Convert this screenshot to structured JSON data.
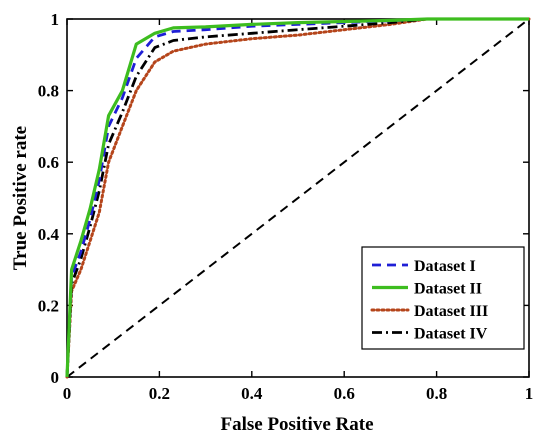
{
  "chart_data": {
    "type": "line",
    "title": "",
    "xlabel": "False Positive Rate",
    "ylabel": "True Positive rate",
    "xlim": [
      0,
      1
    ],
    "ylim": [
      0,
      1
    ],
    "xticks": [
      0,
      0.2,
      0.4,
      0.6,
      0.8,
      1
    ],
    "yticks": [
      0,
      0.2,
      0.4,
      0.6,
      0.8,
      1
    ],
    "xtick_labels": [
      "0",
      "0.2",
      "0.4",
      "0.6",
      "0.8",
      "1"
    ],
    "ytick_labels": [
      "0",
      "0.2",
      "0.4",
      "0.6",
      "0.8",
      "1"
    ],
    "grid": false,
    "legend_position": "bottom-right",
    "series": [
      {
        "name": "Dataset I",
        "color": "#1f1fd6",
        "style": "dashed",
        "x": [
          0,
          0.01,
          0.03,
          0.05,
          0.07,
          0.09,
          0.12,
          0.15,
          0.19,
          0.23,
          0.3,
          0.4,
          0.5,
          0.6,
          0.7,
          0.78,
          0.9,
          1
        ],
        "y": [
          0,
          0.28,
          0.35,
          0.44,
          0.55,
          0.7,
          0.78,
          0.89,
          0.95,
          0.965,
          0.97,
          0.98,
          0.985,
          0.99,
          0.995,
          1,
          1,
          1
        ]
      },
      {
        "name": "Dataset II",
        "color": "#3dbd1f",
        "style": "solid",
        "x": [
          0,
          0.01,
          0.03,
          0.05,
          0.07,
          0.09,
          0.12,
          0.15,
          0.19,
          0.23,
          0.3,
          0.4,
          0.5,
          0.6,
          0.7,
          0.78,
          0.9,
          1
        ],
        "y": [
          0,
          0.3,
          0.38,
          0.47,
          0.58,
          0.73,
          0.8,
          0.93,
          0.96,
          0.975,
          0.978,
          0.985,
          0.99,
          0.993,
          0.996,
          1,
          1,
          1
        ]
      },
      {
        "name": "Dataset III",
        "color": "#b5451b",
        "style": "dotted",
        "x": [
          0,
          0.01,
          0.03,
          0.05,
          0.07,
          0.09,
          0.12,
          0.15,
          0.19,
          0.23,
          0.3,
          0.4,
          0.5,
          0.6,
          0.7,
          0.78,
          0.9,
          1
        ],
        "y": [
          0,
          0.24,
          0.3,
          0.38,
          0.46,
          0.6,
          0.7,
          0.8,
          0.88,
          0.91,
          0.93,
          0.945,
          0.955,
          0.97,
          0.985,
          1,
          1,
          1
        ]
      },
      {
        "name": "Dataset IV",
        "color": "#000000",
        "style": "dashdot",
        "x": [
          0,
          0.01,
          0.03,
          0.05,
          0.07,
          0.09,
          0.12,
          0.15,
          0.19,
          0.23,
          0.3,
          0.4,
          0.5,
          0.6,
          0.7,
          0.78,
          0.9,
          1
        ],
        "y": [
          0,
          0.26,
          0.33,
          0.42,
          0.52,
          0.65,
          0.74,
          0.84,
          0.92,
          0.94,
          0.95,
          0.96,
          0.97,
          0.98,
          0.99,
          1,
          1,
          1
        ]
      },
      {
        "name": "",
        "color": "#000000",
        "style": "dashed",
        "x": [
          0,
          1
        ],
        "y": [
          0,
          1
        ]
      }
    ],
    "legend": [
      "Dataset I",
      "Dataset II",
      "Dataset III",
      "Dataset IV"
    ]
  }
}
